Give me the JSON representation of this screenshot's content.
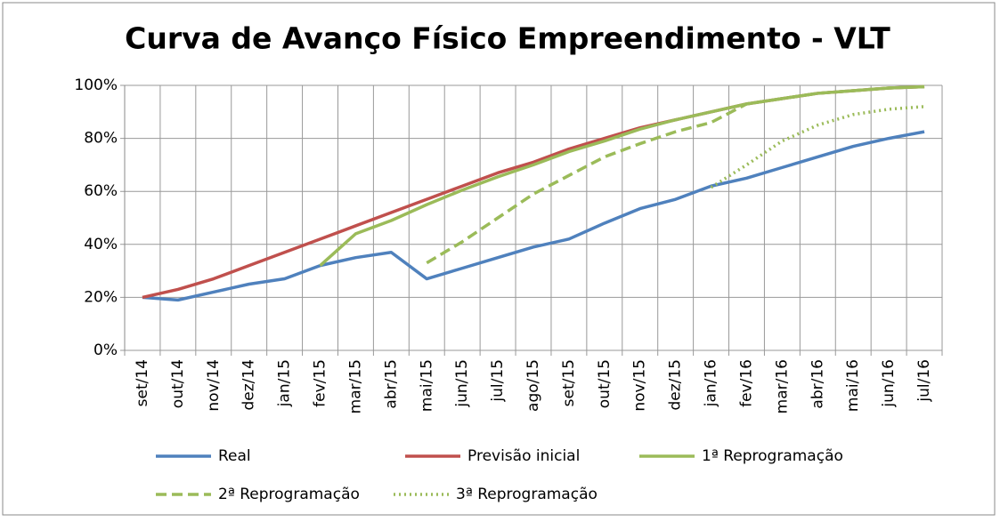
{
  "chart_data": {
    "type": "line",
    "title": "Curva de Avanço Físico Empreendimento - VLT",
    "categories": [
      "set/14",
      "out/14",
      "nov/14",
      "dez/14",
      "jan/15",
      "fev/15",
      "mar/15",
      "abr/15",
      "mai/15",
      "jun/15",
      "jul/15",
      "ago/15",
      "set/15",
      "out/15",
      "nov/15",
      "dez/15",
      "jan/16",
      "fev/16",
      "mar/16",
      "abr/16",
      "mai/16",
      "jun/16",
      "jul/16"
    ],
    "series": [
      {
        "name": "Real",
        "color": "#4f81bd",
        "style": "solid",
        "values": [
          20,
          19,
          22,
          25,
          27,
          32,
          35,
          37,
          27,
          31,
          35,
          39,
          42,
          48,
          53.5,
          57,
          62,
          65,
          69,
          73,
          77,
          80,
          82.5
        ]
      },
      {
        "name": "Previsão inicial",
        "color": "#c0504d",
        "style": "solid",
        "values": [
          20,
          23,
          27,
          32,
          37,
          42,
          47,
          52,
          57,
          62,
          67,
          71,
          76,
          80,
          84,
          87,
          90,
          93,
          95,
          97,
          98,
          99,
          99.5
        ]
      },
      {
        "name": "1ª Reprogramação",
        "color": "#9bbb59",
        "style": "solid",
        "values": [
          null,
          null,
          null,
          null,
          null,
          32,
          44,
          49,
          55,
          60.5,
          65.5,
          70,
          75,
          79,
          83.5,
          87,
          90,
          93,
          95,
          97,
          98,
          99,
          99.5
        ]
      },
      {
        "name": "2ª Reprogramação",
        "color": "#9bbb59",
        "style": "dashed",
        "values": [
          null,
          null,
          null,
          null,
          null,
          null,
          null,
          null,
          33,
          41,
          50,
          59,
          66,
          73,
          78,
          82.5,
          86,
          93,
          95,
          97,
          98,
          99,
          99.5
        ]
      },
      {
        "name": "3ª Reprogramação",
        "color": "#9bbb59",
        "style": "dotted",
        "values": [
          null,
          null,
          null,
          null,
          null,
          null,
          null,
          null,
          null,
          null,
          null,
          null,
          null,
          null,
          null,
          null,
          61.5,
          70,
          79,
          85,
          89,
          91,
          92
        ]
      }
    ],
    "ylim": [
      0,
      100
    ],
    "yticks": [
      {
        "value": 0,
        "label": "0%"
      },
      {
        "value": 20,
        "label": "20%"
      },
      {
        "value": 40,
        "label": "40%"
      },
      {
        "value": 60,
        "label": "60%"
      },
      {
        "value": 80,
        "label": "80%"
      },
      {
        "value": 100,
        "label": "100%"
      }
    ],
    "grid": true
  }
}
